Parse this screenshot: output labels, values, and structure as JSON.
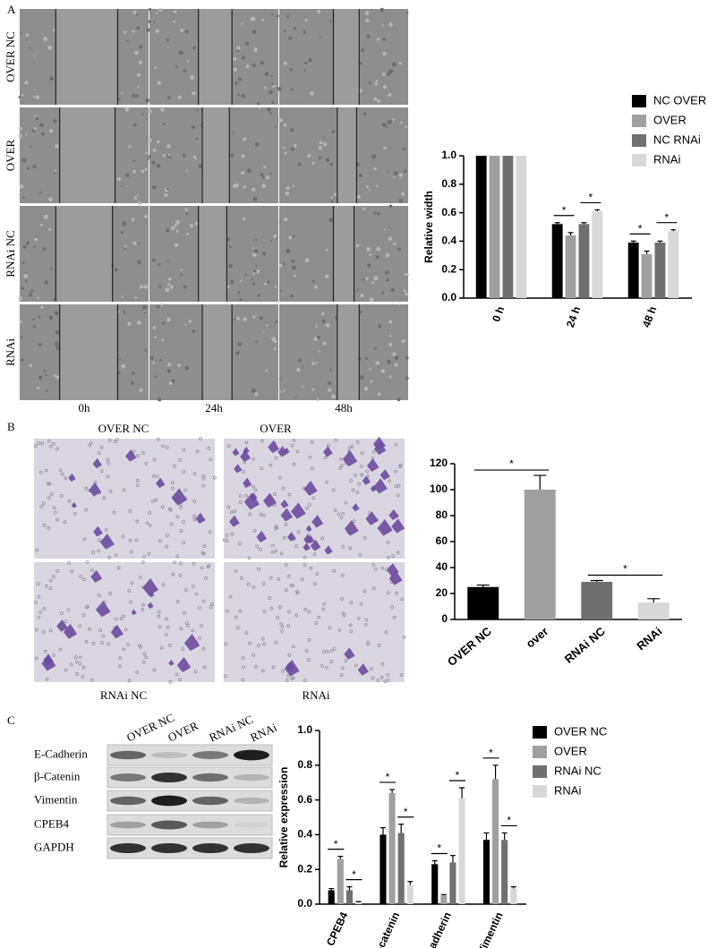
{
  "panel_labels": [
    "A",
    "B",
    "C"
  ],
  "wound_images": {
    "rows": [
      "OVER NC",
      "OVER",
      "RNAi NC",
      "RNAi"
    ],
    "columns": [
      "0h",
      "24h",
      "48h"
    ]
  },
  "transwell_images": {
    "labels": [
      "OVER NC",
      "OVER",
      "RNAi NC",
      "RNAi"
    ]
  },
  "western_blot": {
    "columns": [
      "OVER NC",
      "OVER",
      "RNAi NC",
      "RNAi"
    ],
    "rows": [
      "E-Cadherin",
      "β-Catenin",
      "Vimentin",
      "CPEB4",
      "GAPDH"
    ]
  },
  "chart_data": [
    {
      "type": "bar",
      "y_label": "Relative width",
      "categories": [
        "0 h",
        "24 h",
        "48 h"
      ],
      "series": [
        {
          "name": "NC OVER",
          "color": "#000000",
          "values": [
            1.0,
            0.52,
            0.39
          ],
          "errors": [
            0,
            0.01,
            0.01
          ]
        },
        {
          "name": "OVER",
          "color": "#a0a0a0",
          "values": [
            1.0,
            0.44,
            0.31
          ],
          "errors": [
            0,
            0.02,
            0.02
          ]
        },
        {
          "name": "NC RNAi",
          "color": "#707070",
          "values": [
            1.0,
            0.52,
            0.39
          ],
          "errors": [
            0,
            0.01,
            0.01
          ]
        },
        {
          "name": "RNAi",
          "color": "#d8d8d8",
          "values": [
            1.0,
            0.61,
            0.47
          ],
          "errors": [
            0,
            0.01,
            0.01
          ]
        }
      ],
      "ylim": [
        0,
        1.0
      ],
      "yticks": [
        {
          "value": 0,
          "label": "0.0"
        },
        0.2,
        0.4,
        0.6,
        0.8,
        {
          "value": 1,
          "label": "1.0"
        }
      ],
      "annotations": [
        "*",
        "*",
        "*",
        "*"
      ]
    },
    {
      "type": "bar",
      "categories": [
        "OVER NC",
        "over",
        "RNAi NC",
        "RNAi"
      ],
      "values": [
        25,
        100,
        29,
        13
      ],
      "errors": [
        1.5,
        11,
        1,
        3
      ],
      "colors": [
        "#000000",
        "#a0a0a0",
        "#707070",
        "#d8d8d8"
      ],
      "ylim": [
        0,
        120
      ],
      "yticks": [
        0,
        20,
        40,
        60,
        80,
        100,
        120
      ],
      "annotations": [
        "*",
        "*"
      ]
    },
    {
      "type": "bar",
      "y_label": "Relative expression",
      "categories": [
        "CPEB4",
        "β-catenin",
        "E-cadherin",
        "Vimentin"
      ],
      "series": [
        {
          "name": "OVER NC",
          "color": "#000000",
          "values": [
            0.08,
            0.4,
            0.23,
            0.37
          ],
          "errors": [
            0.01,
            0.04,
            0.02,
            0.04
          ]
        },
        {
          "name": "OVER",
          "color": "#a0a0a0",
          "values": [
            0.26,
            0.64,
            0.05,
            0.72
          ],
          "errors": [
            0.015,
            0.02,
            0.005,
            0.08
          ]
        },
        {
          "name": "RNAi NC",
          "color": "#707070",
          "values": [
            0.08,
            0.41,
            0.24,
            0.37
          ],
          "errors": [
            0.02,
            0.05,
            0.04,
            0.04
          ]
        },
        {
          "name": "RNAi",
          "color": "#d8d8d8",
          "values": [
            0.01,
            0.11,
            0.61,
            0.09
          ],
          "errors": [
            0.005,
            0.02,
            0.06,
            0.01
          ]
        }
      ],
      "ylim": [
        0,
        1.0
      ],
      "yticks": [
        {
          "value": 0,
          "label": "0.0"
        },
        0.2,
        0.4,
        0.6,
        0.8,
        {
          "value": 1,
          "label": "1.0"
        }
      ],
      "annotations": [
        "*",
        "*",
        "*",
        "*",
        "*",
        "*",
        "*",
        "*"
      ]
    }
  ]
}
